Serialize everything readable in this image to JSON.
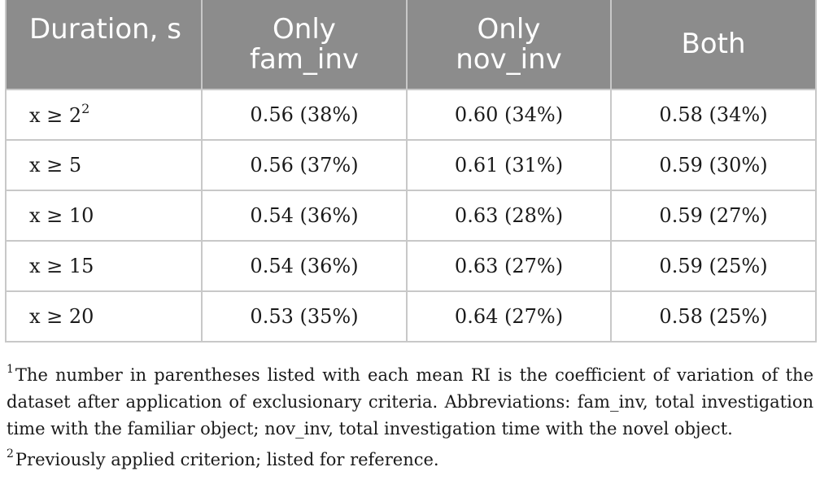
{
  "table": {
    "headers": [
      {
        "line1": "Duration, s",
        "line2": ""
      },
      {
        "line1": "Only",
        "line2": "fam_inv"
      },
      {
        "line1": "Only",
        "line2": "nov_inv"
      },
      {
        "line1": "Both",
        "line2": ""
      }
    ],
    "rows": [
      {
        "duration": "x ≥ 2",
        "duration_sup": "2",
        "fam": "0.56 (38%)",
        "nov": "0.60 (34%)",
        "both": "0.58 (34%)"
      },
      {
        "duration": "x ≥ 5",
        "duration_sup": "",
        "fam": "0.56 (37%)",
        "nov": "0.61 (31%)",
        "both": "0.59 (30%)"
      },
      {
        "duration": "x ≥ 10",
        "duration_sup": "",
        "fam": "0.54 (36%)",
        "nov": "0.63 (28%)",
        "both": "0.59 (27%)"
      },
      {
        "duration": "x ≥ 15",
        "duration_sup": "",
        "fam": "0.54 (36%)",
        "nov": "0.63 (27%)",
        "both": "0.59 (25%)"
      },
      {
        "duration": "x ≥ 20",
        "duration_sup": "",
        "fam": "0.53 (35%)",
        "nov": "0.64 (27%)",
        "both": "0.58 (25%)"
      }
    ]
  },
  "footnotes": [
    {
      "mark": "1",
      "text": "The number in parentheses listed with each mean RI is the coefficient of variation of the dataset after application of exclusionary criteria. Abbreviations: fam_inv, total investigation time with the familiar object; nov_inv, total investigation time with the novel object."
    },
    {
      "mark": "2",
      "text": "Previously applied criterion; listed for reference."
    }
  ],
  "colors": {
    "header_bg": "#8c8c8c",
    "header_text": "#ffffff",
    "grid": "#c8c8c8"
  }
}
